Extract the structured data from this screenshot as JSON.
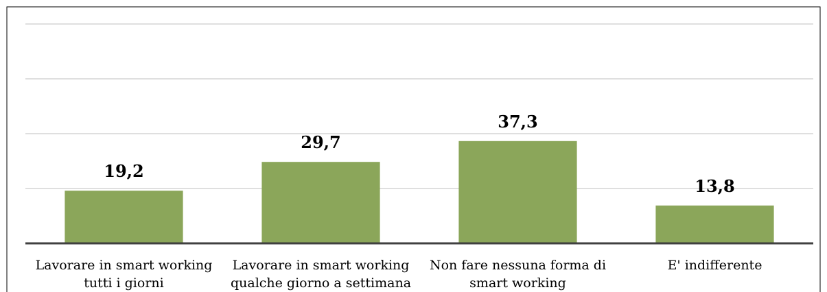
{
  "chart_data": {
    "type": "bar",
    "categories": [
      [
        "Lavorare in smart working",
        "tutti i giorni"
      ],
      [
        "Lavorare in smart working",
        "qualche giorno a settimana"
      ],
      [
        "Non fare nessuna forma di",
        "smart working"
      ],
      [
        "E' indifferente"
      ]
    ],
    "values": [
      19.2,
      29.7,
      37.3,
      13.8
    ],
    "value_labels": [
      "19,2",
      "29,7",
      "37,3",
      "13,8"
    ],
    "color": "#8ba65a",
    "ylim": [
      0,
      80
    ],
    "yticks": [
      0,
      20,
      40,
      60,
      80
    ],
    "grid": true
  }
}
